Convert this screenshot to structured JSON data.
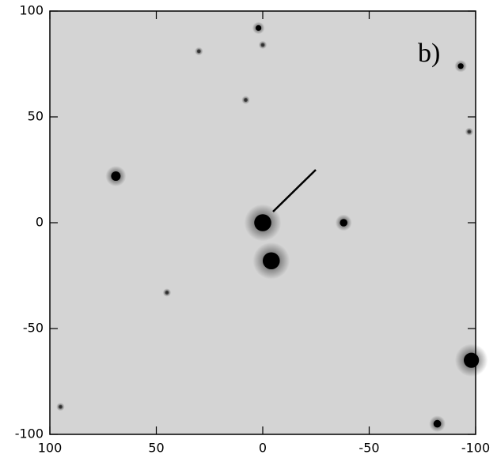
{
  "chart_data": {
    "type": "scatter",
    "annotation": "b)",
    "x": [
      0,
      -4,
      -38,
      69,
      -98,
      -82,
      2,
      0,
      30,
      8,
      -93,
      -97,
      45,
      95
    ],
    "y": [
      0,
      -18,
      0,
      22,
      -65,
      -95,
      92,
      84,
      81,
      58,
      74,
      43,
      -33,
      -87
    ],
    "sizes": [
      9,
      9,
      4,
      5,
      8,
      4,
      3,
      2,
      2,
      2,
      3,
      2,
      2,
      2
    ],
    "color": "#000000",
    "background": "#d4d4d4",
    "xlim": [
      100,
      -100
    ],
    "ylim": [
      -100,
      100
    ],
    "xticks": [
      100,
      50,
      0,
      -50,
      -100
    ],
    "yticks": [
      100,
      50,
      0,
      -50,
      -100
    ]
  }
}
